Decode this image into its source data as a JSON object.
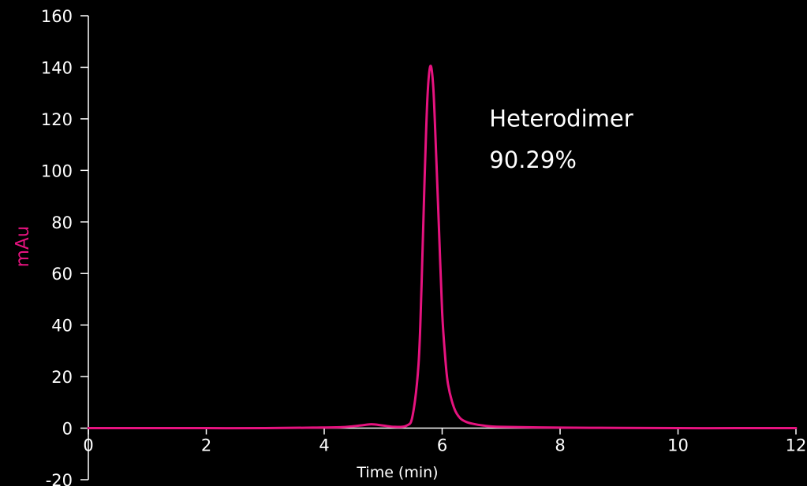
{
  "chart_data": {
    "type": "line",
    "title": "",
    "xlabel": "Time (min)",
    "ylabel": "mAu",
    "xlim": [
      0,
      12
    ],
    "ylim": [
      -20,
      160
    ],
    "xticks": [
      0,
      2,
      4,
      6,
      8,
      10,
      12
    ],
    "yticks": [
      -20,
      0,
      20,
      40,
      60,
      80,
      100,
      120,
      140,
      160
    ],
    "grid": false,
    "legend": "none",
    "colors": {
      "background": "#000000",
      "axis": "#ffffff",
      "series": "#e6137f",
      "ylabel": "#e6137f"
    },
    "series": [
      {
        "x": [
          0,
          1,
          2,
          3,
          3.8,
          4.3,
          4.6,
          4.8,
          5.0,
          5.2,
          5.4,
          5.5,
          5.6,
          5.65,
          5.7,
          5.75,
          5.8,
          5.85,
          5.9,
          5.95,
          6.0,
          6.05,
          6.1,
          6.2,
          6.3,
          6.4,
          6.5,
          6.7,
          7.0,
          8.0,
          9.0,
          10.0,
          11.0,
          12.0
        ],
        "y": [
          0,
          0,
          0,
          0,
          0.2,
          0.4,
          1.0,
          1.5,
          1.0,
          0.5,
          1.0,
          5,
          25,
          55,
          95,
          128,
          140.5,
          132,
          105,
          75,
          45,
          28,
          17,
          8,
          4,
          2.5,
          1.8,
          1.0,
          0.5,
          0.2,
          0.1,
          0,
          0,
          0
        ]
      }
    ],
    "annotations": [
      {
        "text": "Heterodimer",
        "x": 6.8,
        "y": 117
      },
      {
        "text": "90.29%",
        "x": 6.8,
        "y": 101
      }
    ]
  }
}
